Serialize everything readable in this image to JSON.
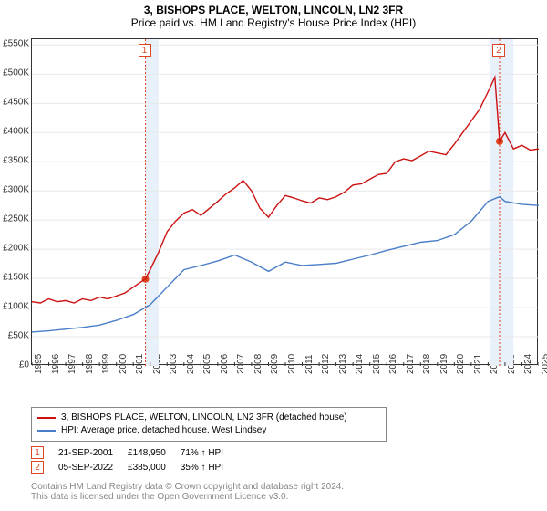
{
  "title": "3, BISHOPS PLACE, WELTON, LINCOLN, LN2 3FR",
  "subtitle": "Price paid vs. HM Land Registry's House Price Index (HPI)",
  "chart": {
    "type": "line",
    "background_color": "#ffffff",
    "grid_color": "#e8e8e8",
    "border_color": "#333333",
    "years": [
      1995,
      1996,
      1997,
      1998,
      1999,
      2000,
      2001,
      2002,
      2003,
      2004,
      2005,
      2006,
      2007,
      2008,
      2009,
      2010,
      2011,
      2012,
      2013,
      2014,
      2015,
      2016,
      2017,
      2018,
      2019,
      2020,
      2021,
      2022,
      2023,
      2024,
      2025
    ],
    "ylim": [
      0,
      560000
    ],
    "yticks": [
      0,
      50000,
      100000,
      150000,
      200000,
      250000,
      300000,
      350000,
      400000,
      450000,
      500000,
      550000
    ],
    "ytick_labels": [
      "£0",
      "£50K",
      "£100K",
      "£150K",
      "£200K",
      "£250K",
      "£300K",
      "£350K",
      "£400K",
      "£450K",
      "£500K",
      "£550K"
    ],
    "bands": [
      {
        "from_year": 2001.72,
        "to_year": 2002.5,
        "color": "#e8f0fa"
      },
      {
        "from_year": 2022.1,
        "to_year": 2023.5,
        "color": "#e8f0fa"
      }
    ],
    "events": [
      {
        "id": 1,
        "year": 2001.72,
        "price": 148950
      },
      {
        "id": 2,
        "year": 2022.68,
        "price": 385000
      }
    ],
    "event_line_color": "#dd4422",
    "event_marker_fill": "#dd4422",
    "event_marker_radius": 4,
    "series": [
      {
        "name": "property",
        "color": "#cc1111",
        "line_width": 1.4,
        "data": [
          [
            1995,
            110000
          ],
          [
            1995.5,
            108000
          ],
          [
            1996,
            115000
          ],
          [
            1996.5,
            110000
          ],
          [
            1997,
            112000
          ],
          [
            1997.5,
            108000
          ],
          [
            1998,
            115000
          ],
          [
            1998.5,
            112000
          ],
          [
            1999,
            118000
          ],
          [
            1999.5,
            115000
          ],
          [
            2000,
            120000
          ],
          [
            2000.5,
            125000
          ],
          [
            2001,
            135000
          ],
          [
            2001.5,
            145000
          ],
          [
            2001.72,
            148950
          ],
          [
            2002,
            165000
          ],
          [
            2002.5,
            195000
          ],
          [
            2003,
            230000
          ],
          [
            2003.5,
            248000
          ],
          [
            2004,
            262000
          ],
          [
            2004.5,
            268000
          ],
          [
            2005,
            258000
          ],
          [
            2005.5,
            270000
          ],
          [
            2006,
            282000
          ],
          [
            2006.5,
            295000
          ],
          [
            2007,
            305000
          ],
          [
            2007.5,
            318000
          ],
          [
            2008,
            300000
          ],
          [
            2008.5,
            270000
          ],
          [
            2009,
            255000
          ],
          [
            2009.5,
            275000
          ],
          [
            2010,
            292000
          ],
          [
            2010.5,
            288000
          ],
          [
            2011,
            283000
          ],
          [
            2011.5,
            279000
          ],
          [
            2012,
            288000
          ],
          [
            2012.5,
            285000
          ],
          [
            2013,
            290000
          ],
          [
            2013.5,
            298000
          ],
          [
            2014,
            310000
          ],
          [
            2014.5,
            312000
          ],
          [
            2015,
            320000
          ],
          [
            2015.5,
            328000
          ],
          [
            2016,
            330000
          ],
          [
            2016.5,
            350000
          ],
          [
            2017,
            355000
          ],
          [
            2017.5,
            352000
          ],
          [
            2018,
            360000
          ],
          [
            2018.5,
            368000
          ],
          [
            2019,
            365000
          ],
          [
            2019.5,
            362000
          ],
          [
            2020,
            380000
          ],
          [
            2020.5,
            400000
          ],
          [
            2021,
            420000
          ],
          [
            2021.5,
            440000
          ],
          [
            2022,
            470000
          ],
          [
            2022.4,
            495000
          ],
          [
            2022.68,
            385000
          ],
          [
            2023,
            400000
          ],
          [
            2023.5,
            372000
          ],
          [
            2024,
            378000
          ],
          [
            2024.5,
            370000
          ],
          [
            2025,
            372000
          ]
        ]
      },
      {
        "name": "hpi",
        "color": "#4a7ec8",
        "line_width": 1.4,
        "data": [
          [
            1995,
            58000
          ],
          [
            1996,
            60000
          ],
          [
            1997,
            63000
          ],
          [
            1998,
            66000
          ],
          [
            1999,
            70000
          ],
          [
            2000,
            78000
          ],
          [
            2001,
            88000
          ],
          [
            2002,
            105000
          ],
          [
            2003,
            135000
          ],
          [
            2004,
            165000
          ],
          [
            2005,
            172000
          ],
          [
            2006,
            180000
          ],
          [
            2007,
            190000
          ],
          [
            2008,
            178000
          ],
          [
            2009,
            162000
          ],
          [
            2010,
            178000
          ],
          [
            2011,
            172000
          ],
          [
            2012,
            174000
          ],
          [
            2013,
            176000
          ],
          [
            2014,
            183000
          ],
          [
            2015,
            190000
          ],
          [
            2016,
            198000
          ],
          [
            2017,
            205000
          ],
          [
            2018,
            212000
          ],
          [
            2019,
            215000
          ],
          [
            2020,
            225000
          ],
          [
            2021,
            248000
          ],
          [
            2022,
            282000
          ],
          [
            2022.68,
            290000
          ],
          [
            2023,
            282000
          ],
          [
            2024,
            277000
          ],
          [
            2025,
            275000
          ]
        ]
      }
    ]
  },
  "legend": {
    "items": [
      {
        "color": "#cc1111",
        "label": "3, BISHOPS PLACE, WELTON, LINCOLN, LN2 3FR (detached house)"
      },
      {
        "color": "#4a7ec8",
        "label": "HPI: Average price, detached house, West Lindsey"
      }
    ]
  },
  "sales": {
    "rows": [
      {
        "id": "1",
        "date": "21-SEP-2001",
        "price": "£148,950",
        "pct": "71% ↑ HPI"
      },
      {
        "id": "2",
        "date": "05-SEP-2022",
        "price": "£385,000",
        "pct": "35% ↑ HPI"
      }
    ]
  },
  "footer": {
    "line1": "Contains HM Land Registry data © Crown copyright and database right 2024.",
    "line2": "This data is licensed under the Open Government Licence v3.0."
  }
}
